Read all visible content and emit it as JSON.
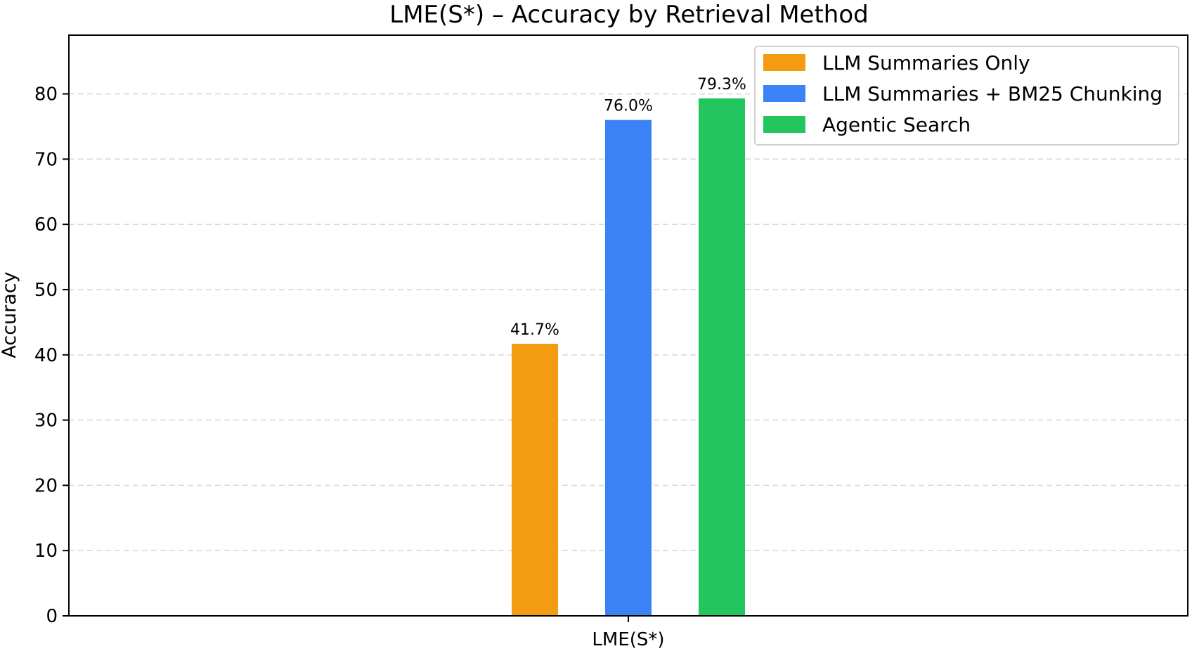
{
  "chart_data": {
    "type": "bar",
    "title": "LME(S*) – Accuracy by Retrieval Method",
    "xlabel": "",
    "ylabel": "Accuracy",
    "categories": [
      "LME(S*)"
    ],
    "series": [
      {
        "name": "LLM Summaries Only",
        "values": [
          41.7
        ],
        "label": "41.7%",
        "color": "#f39c12"
      },
      {
        "name": "LLM Summaries + BM25 Chunking",
        "values": [
          76.0
        ],
        "label": "76.0%",
        "color": "#3b82f6"
      },
      {
        "name": "Agentic Search",
        "values": [
          79.3
        ],
        "label": "79.3%",
        "color": "#22c55e"
      }
    ],
    "ylim": [
      0,
      89
    ],
    "yticks": [
      0,
      10,
      20,
      30,
      40,
      50,
      60,
      70,
      80
    ],
    "grid": true,
    "legend_position": "top-right"
  }
}
